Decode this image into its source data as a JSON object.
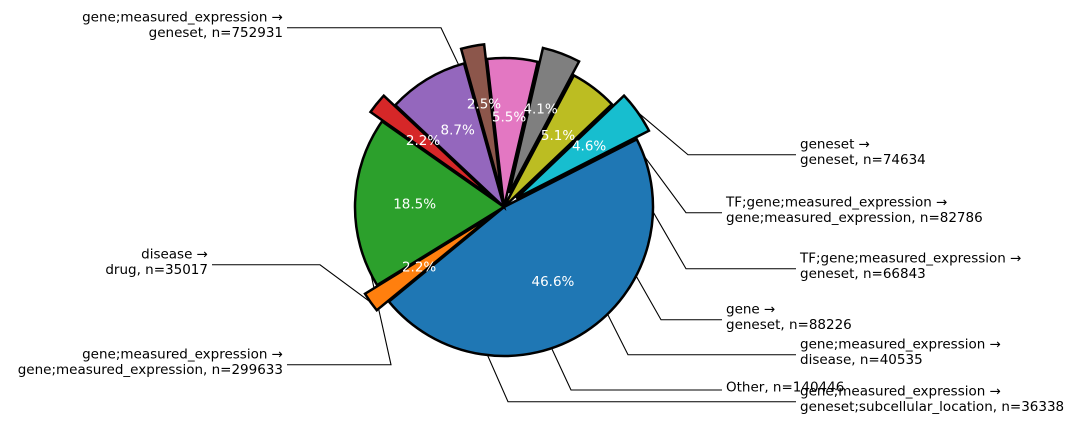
{
  "chart_data": {
    "type": "pie",
    "start_angle_deg": 27,
    "direction": "clockwise",
    "slices": [
      {
        "label": "gene;measured_expression →\ngeneset, n=752931",
        "value": 752931,
        "pct_label": "46.6%",
        "color": "#1f77b4",
        "exploded": false
      },
      {
        "label": "disease →\ndrug, n=35017",
        "value": 35017,
        "pct_label": "2.2%",
        "color": "#ff7f0e",
        "exploded": true
      },
      {
        "label": "gene;measured_expression →\ngene;measured_expression, n=299633",
        "value": 299633,
        "pct_label": "18.5%",
        "color": "#2ca02c",
        "exploded": false
      },
      {
        "label": "gene;measured_expression →\ngeneset;subcellular_location, n=36338",
        "value": 36338,
        "pct_label": "2.2%",
        "color": "#d62728",
        "exploded": true
      },
      {
        "label": "Other, n=140446",
        "value": 140446,
        "pct_label": "8.7%",
        "color": "#9467bd",
        "exploded": false
      },
      {
        "label": "gene;measured_expression →\ndisease, n=40535",
        "value": 40535,
        "pct_label": "2.5%",
        "color": "#8c564b",
        "exploded": true
      },
      {
        "label": "gene →\ngeneset, n=88226",
        "value": 88226,
        "pct_label": "5.5%",
        "color": "#e377c2",
        "exploded": false
      },
      {
        "label": "TF;gene;measured_expression →\ngeneset, n=66843",
        "value": 66843,
        "pct_label": "4.1%",
        "color": "#7f7f7f",
        "exploded": true
      },
      {
        "label": "TF;gene;measured_expression →\ngene;measured_expression, n=82786",
        "value": 82786,
        "pct_label": "5.1%",
        "color": "#bcbd22",
        "exploded": false
      },
      {
        "label": "geneset →\ngeneset, n=74634",
        "value": 74634,
        "pct_label": "4.6%",
        "color": "#17becf",
        "exploded": true
      }
    ]
  }
}
